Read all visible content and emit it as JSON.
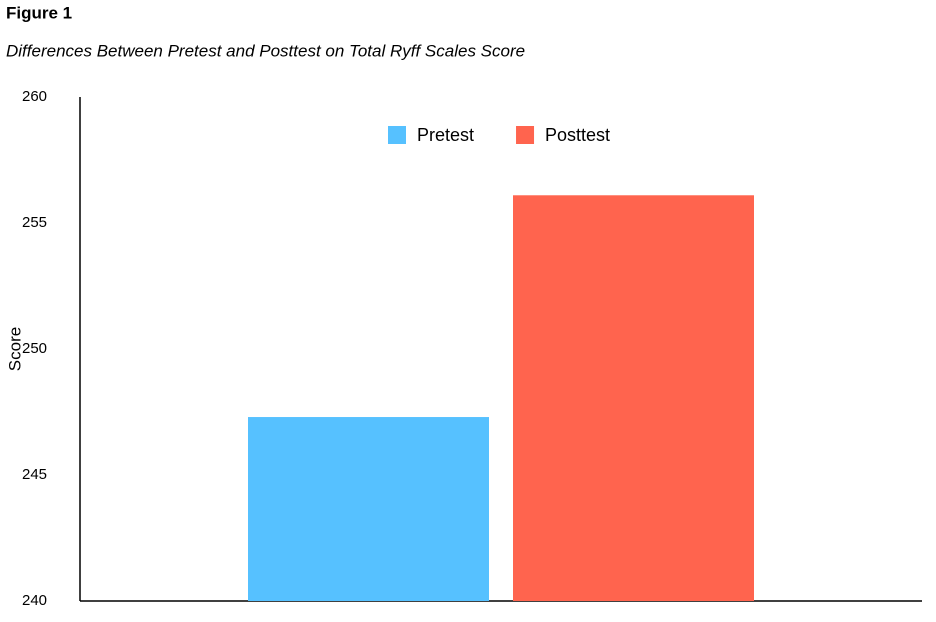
{
  "chart_data": {
    "type": "bar",
    "title": "Figure 1",
    "subtitle": "Differences Between Pretest and Posttest on Total Ryff Scales Score",
    "y_label": "Score",
    "categories": [
      null
    ],
    "series": [
      {
        "name": "Pretest",
        "color": "#56c1ff",
        "values": [
          247.3
        ]
      },
      {
        "name": "Posttest",
        "color": "#ff644e",
        "values": [
          256.1
        ]
      }
    ],
    "ylim": [
      240,
      260
    ],
    "yticks": [
      240,
      245,
      250,
      255,
      260
    ],
    "grid": false,
    "legend": "top"
  }
}
